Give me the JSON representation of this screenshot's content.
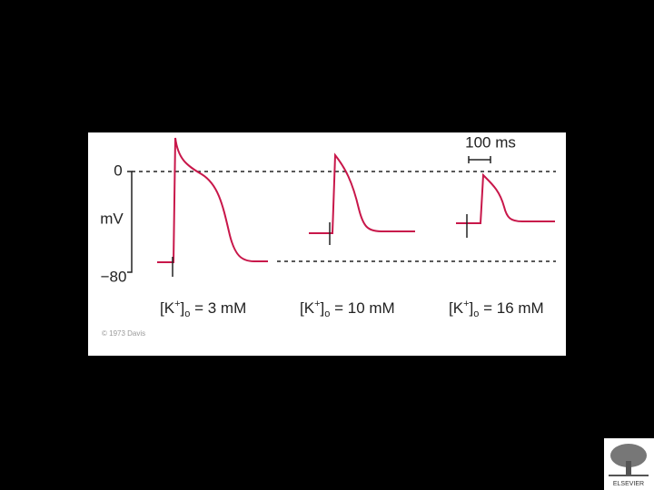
{
  "figure": {
    "zero_label": "0",
    "unit_label": "mV",
    "min_label": "−80",
    "scale_bar_label": "100 ms",
    "panels": [
      {
        "ion": "[K",
        "charge": "+",
        "close": "]",
        "sub": "o",
        "rest": " = 3 mM"
      },
      {
        "ion": "[K",
        "charge": "+",
        "close": "]",
        "sub": "o",
        "rest": " = 10 mM"
      },
      {
        "ion": "[K",
        "charge": "+",
        "close": "]",
        "sub": "o",
        "rest": " = 16 mM"
      }
    ],
    "copyright": "© 1973 Davis"
  },
  "logo": {
    "text": "ELSEVIER"
  }
}
